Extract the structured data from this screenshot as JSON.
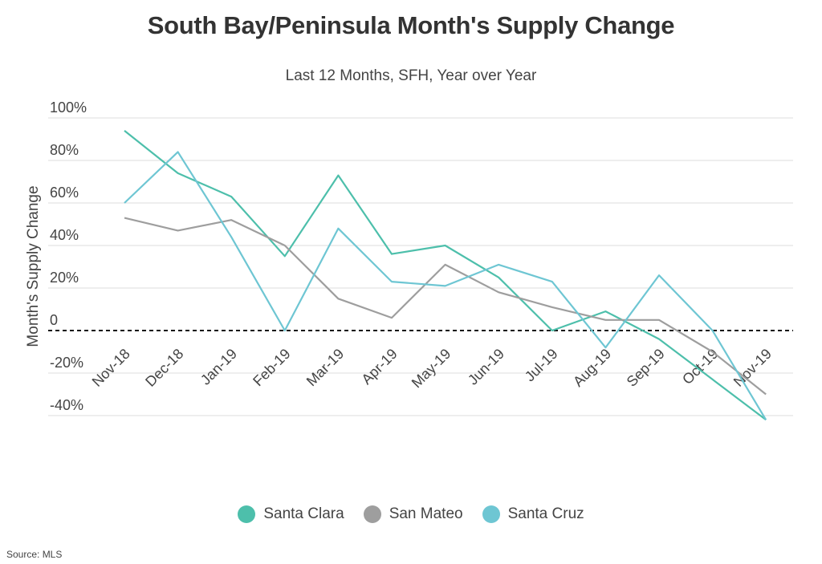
{
  "chart_data": {
    "type": "line",
    "title": "South Bay/Peninsula Month's Supply Change",
    "subtitle": "Last 12 Months, SFH, Year over Year",
    "xlabel": "",
    "ylabel": "Month's Supply Change",
    "ylim": [
      -40,
      100
    ],
    "yticks": [
      {
        "value": 100,
        "label": "100%"
      },
      {
        "value": 80,
        "label": "80%"
      },
      {
        "value": 60,
        "label": "60%"
      },
      {
        "value": 40,
        "label": "40%"
      },
      {
        "value": 20,
        "label": "20%"
      },
      {
        "value": 0,
        "label": "0"
      },
      {
        "value": -20,
        "label": "-20%"
      },
      {
        "value": -40,
        "label": "-40%"
      }
    ],
    "grid": true,
    "legend_position": "bottom",
    "categories": [
      "Nov-18",
      "Dec-18",
      "Jan-19",
      "Feb-19",
      "Mar-19",
      "Apr-19",
      "May-19",
      "Jun-19",
      "Jul-19",
      "Aug-19",
      "Sep-19",
      "Oct-19",
      "Nov-19"
    ],
    "series": [
      {
        "name": "Santa Clara",
        "color": "#4dbfab",
        "values": [
          94,
          74,
          63,
          35,
          73,
          36,
          40,
          25,
          0,
          9,
          -4,
          -23,
          -42
        ]
      },
      {
        "name": "San Mateo",
        "color": "#9e9e9e",
        "values": [
          53,
          47,
          52,
          40,
          15,
          6,
          31,
          18,
          11,
          5,
          5,
          -10,
          -30
        ]
      },
      {
        "name": "Santa Cruz",
        "color": "#6ec6d3",
        "values": [
          60,
          84,
          44,
          0,
          48,
          23,
          21,
          31,
          23,
          -8,
          26,
          0,
          -42
        ]
      }
    ],
    "source": "Source:  MLS"
  }
}
